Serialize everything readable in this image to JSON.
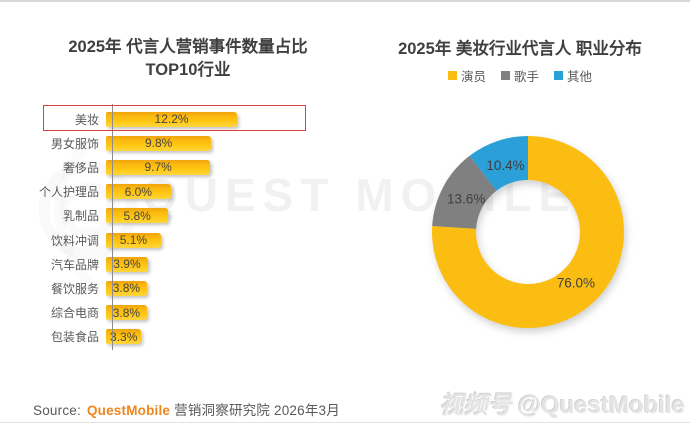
{
  "page": {
    "source_prefix": "Source:",
    "source_brand": "QuestMobile",
    "source_suffix": "营销洞察研究院 2026年3月",
    "watermark_text": "QUEST MOBILE",
    "corner_watermark_logo": "视频号",
    "corner_watermark_handle": "@QuestMobile"
  },
  "colors": {
    "bar_yellow": "#ffc713",
    "donut_yellow": "#fbbd11",
    "donut_gray": "#808080",
    "donut_blue": "#2a9fd8",
    "highlight_red": "#d6453c",
    "brand_orange": "#f0851c",
    "title_text": "#3f3f3f",
    "label_text": "#595959"
  },
  "chart_data": [
    {
      "type": "bar",
      "orientation": "horizontal",
      "title": "2025年 代言人营销事件数量占比 TOP10行业",
      "title_lines": [
        "2025年 代言人营销事件数量占比",
        "TOP10行业"
      ],
      "categories": [
        "美妆",
        "男女服饰",
        "奢侈品",
        "个人护理品",
        "乳制品",
        "饮料冲调",
        "汽车品牌",
        "餐饮服务",
        "综合电商",
        "包装食品"
      ],
      "values": [
        12.2,
        9.8,
        9.7,
        6.0,
        5.8,
        5.1,
        3.9,
        3.8,
        3.8,
        3.3
      ],
      "value_labels": [
        "12.2%",
        "9.8%",
        "9.7%",
        "6.0%",
        "5.8%",
        "5.1%",
        "3.9%",
        "3.8%",
        "3.8%",
        "3.3%"
      ],
      "highlighted_category": "美妆",
      "xlabel": "",
      "ylabel": "",
      "xlim": [
        0,
        14
      ],
      "grid": false
    },
    {
      "type": "pie",
      "subtype": "donut",
      "title": "2025年 美妆行业代言人 职业分布",
      "legend_position": "top",
      "series": [
        {
          "name": "演员",
          "value": 76.0,
          "label": "76.0%",
          "color": "#fbbd11"
        },
        {
          "name": "歌手",
          "value": 13.6,
          "label": "13.6%",
          "color": "#808080"
        },
        {
          "name": "其他",
          "value": 10.4,
          "label": "10.4%",
          "color": "#2a9fd8"
        }
      ]
    }
  ]
}
